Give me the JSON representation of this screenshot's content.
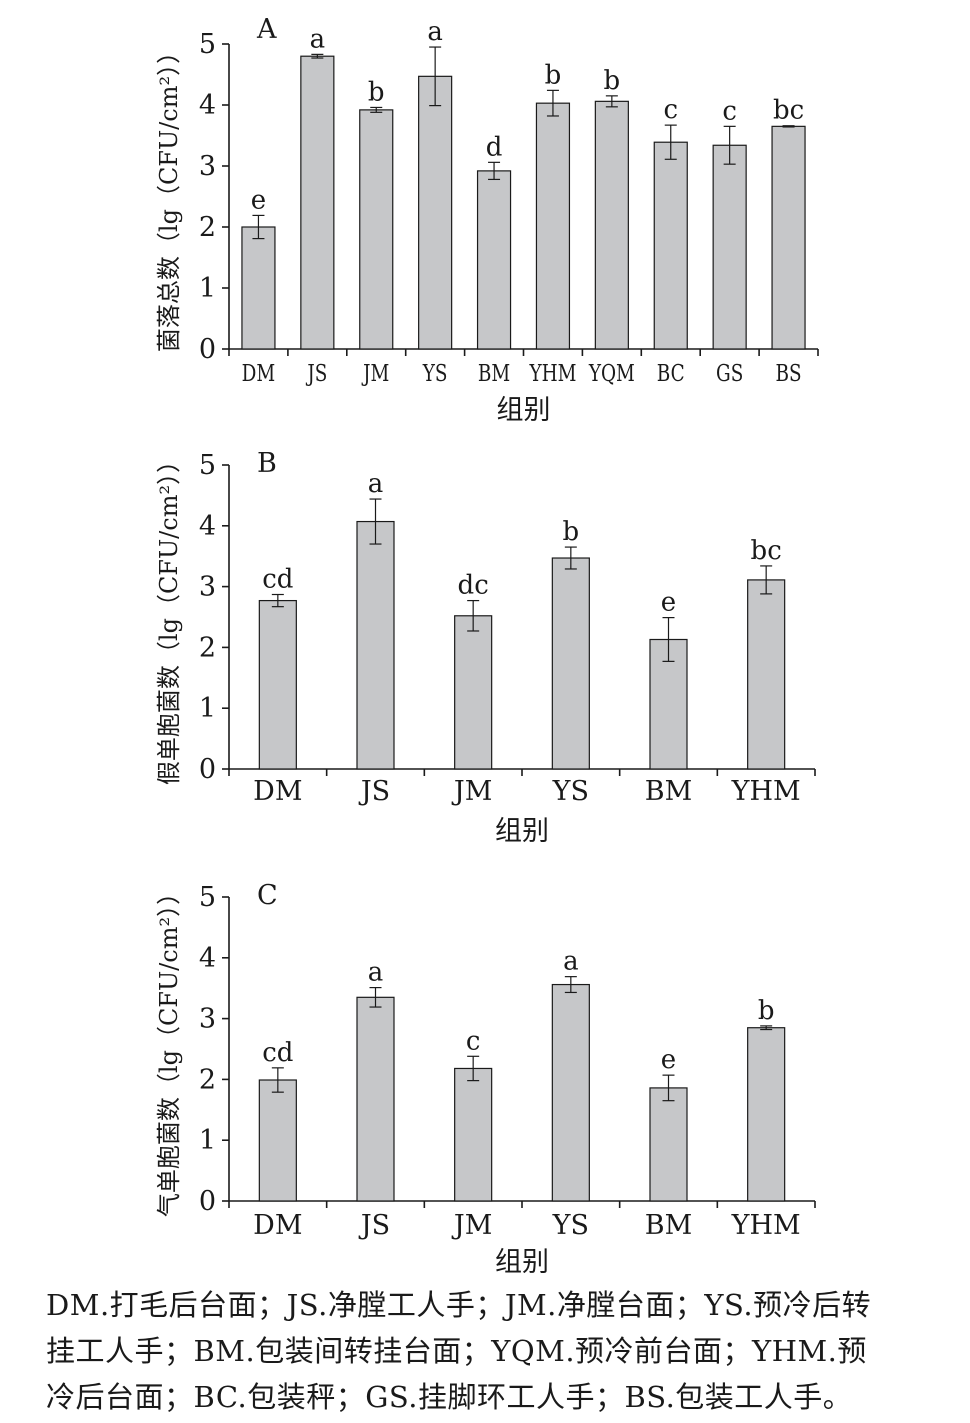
{
  "chart_data": [
    {
      "type": "bar",
      "panel_label": "A",
      "ylabel": "菌落总数（lg（CFU/cm²））",
      "xlabel": "组别",
      "ylim": [
        0,
        5
      ],
      "yticks": [
        0,
        1,
        2,
        3,
        4,
        5
      ],
      "categories": [
        "DM",
        "JS",
        "JM",
        "YS",
        "BM",
        "YHM",
        "YQM",
        "BC",
        "GS",
        "BS"
      ],
      "values": [
        2.0,
        4.8,
        3.92,
        4.47,
        2.92,
        4.03,
        4.06,
        3.39,
        3.34,
        3.65
      ],
      "errors": [
        0.19,
        0.03,
        0.04,
        0.48,
        0.14,
        0.21,
        0.09,
        0.28,
        0.31,
        0.01
      ],
      "significance": [
        "e",
        "a",
        "b",
        "a",
        "d",
        "b",
        "b",
        "c",
        "c",
        "bc"
      ],
      "bar_color": "#c6c7c9"
    },
    {
      "type": "bar",
      "panel_label": "B",
      "ylabel": "假单胞菌数（lg（CFU/cm²））",
      "xlabel": "组别",
      "ylim": [
        0,
        5
      ],
      "yticks": [
        0,
        1,
        2,
        3,
        4,
        5
      ],
      "categories": [
        "DM",
        "JS",
        "JM",
        "YS",
        "BM",
        "YHM"
      ],
      "values": [
        2.77,
        4.07,
        2.52,
        3.47,
        2.13,
        3.11
      ],
      "errors": [
        0.1,
        0.37,
        0.25,
        0.18,
        0.36,
        0.23
      ],
      "significance": [
        "cd",
        "a",
        "dc",
        "b",
        "e",
        "bc"
      ],
      "bar_color": "#c6c7c9"
    },
    {
      "type": "bar",
      "panel_label": "C",
      "ylabel": "气单胞菌数（lg（CFU/cm²））",
      "xlabel": "组别",
      "ylim": [
        0,
        5
      ],
      "yticks": [
        0,
        1,
        2,
        3,
        4,
        5
      ],
      "categories": [
        "DM",
        "JS",
        "JM",
        "YS",
        "BM",
        "YHM"
      ],
      "values": [
        1.99,
        3.35,
        2.18,
        3.56,
        1.86,
        2.85
      ],
      "errors": [
        0.2,
        0.16,
        0.2,
        0.13,
        0.21,
        0.03
      ],
      "significance": [
        "cd",
        "a",
        "c",
        "a",
        "e",
        "b"
      ],
      "bar_color": "#c6c7c9"
    }
  ],
  "caption": {
    "line1": "DM.打毛后台面；JS.净膛工人手；JM.净膛台面；YS.预冷后转",
    "line2": "挂工人手；BM.包装间转挂台面；YQM.预冷前台面；YHM.预",
    "line3": "冷后台面；BC.包装秤；GS.挂脚环工人手；BS.包装工人手。"
  }
}
